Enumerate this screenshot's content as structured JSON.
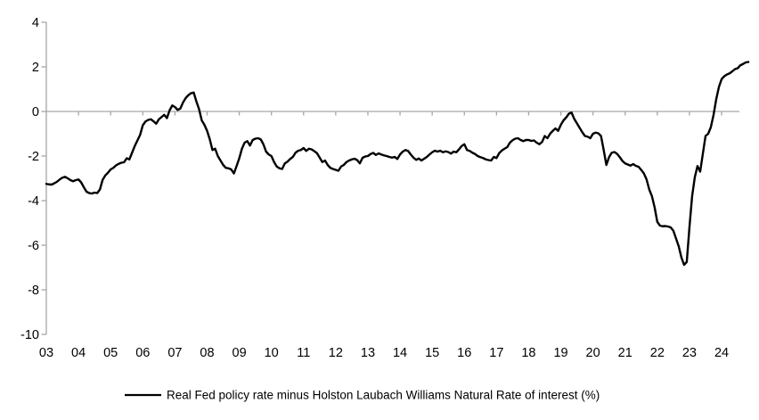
{
  "chart_data": {
    "type": "line",
    "title": "",
    "xlabel": "",
    "ylabel": "",
    "x_tick_labels": [
      "03",
      "04",
      "05",
      "06",
      "07",
      "08",
      "09",
      "10",
      "11",
      "12",
      "13",
      "14",
      "15",
      "16",
      "17",
      "18",
      "19",
      "20",
      "21",
      "22",
      "23",
      "24"
    ],
    "y_ticks": [
      4,
      2,
      0,
      -2,
      -4,
      -6,
      -8,
      -10
    ],
    "ylim": [
      -10,
      4
    ],
    "grid": "zero-line-only",
    "axis_color": "#a6a6a6",
    "background_color": "#ffffff",
    "legend_position": "bottom-center",
    "series": [
      {
        "name": "Real Fed policy rate minus Holston Laubach Williams Natural Rate of interest (%)",
        "color": "#000000",
        "start": "2003-01",
        "frequency": "monthly",
        "values": [
          -3.25,
          -3.27,
          -3.28,
          -3.22,
          -3.15,
          -3.05,
          -2.97,
          -2.93,
          -3.0,
          -3.08,
          -3.13,
          -3.08,
          -3.05,
          -3.18,
          -3.4,
          -3.6,
          -3.66,
          -3.68,
          -3.64,
          -3.66,
          -3.5,
          -3.07,
          -2.87,
          -2.75,
          -2.6,
          -2.53,
          -2.42,
          -2.35,
          -2.3,
          -2.28,
          -2.1,
          -2.15,
          -1.85,
          -1.55,
          -1.3,
          -1.05,
          -0.62,
          -0.45,
          -0.38,
          -0.35,
          -0.44,
          -0.55,
          -0.35,
          -0.25,
          -0.15,
          -0.3,
          0.05,
          0.27,
          0.2,
          0.07,
          0.13,
          0.4,
          0.6,
          0.73,
          0.82,
          0.85,
          0.45,
          0.1,
          -0.4,
          -0.6,
          -0.87,
          -1.25,
          -1.73,
          -1.67,
          -2.0,
          -2.2,
          -2.4,
          -2.53,
          -2.55,
          -2.6,
          -2.78,
          -2.45,
          -2.1,
          -1.67,
          -1.4,
          -1.33,
          -1.53,
          -1.28,
          -1.22,
          -1.2,
          -1.25,
          -1.47,
          -1.8,
          -1.93,
          -2.0,
          -2.27,
          -2.47,
          -2.55,
          -2.58,
          -2.33,
          -2.25,
          -2.13,
          -2.04,
          -1.85,
          -1.76,
          -1.73,
          -1.64,
          -1.77,
          -1.67,
          -1.7,
          -1.78,
          -1.87,
          -2.07,
          -2.27,
          -2.2,
          -2.4,
          -2.53,
          -2.58,
          -2.62,
          -2.66,
          -2.47,
          -2.4,
          -2.27,
          -2.2,
          -2.15,
          -2.12,
          -2.18,
          -2.33,
          -2.08,
          -2.02,
          -2.0,
          -1.91,
          -1.86,
          -1.95,
          -1.88,
          -1.93,
          -1.97,
          -2.0,
          -2.04,
          -2.07,
          -2.04,
          -2.13,
          -1.93,
          -1.8,
          -1.73,
          -1.77,
          -1.93,
          -2.07,
          -2.17,
          -2.11,
          -2.2,
          -2.12,
          -2.04,
          -1.93,
          -1.83,
          -1.76,
          -1.8,
          -1.76,
          -1.83,
          -1.79,
          -1.82,
          -1.89,
          -1.8,
          -1.83,
          -1.7,
          -1.55,
          -1.47,
          -1.73,
          -1.77,
          -1.85,
          -1.91,
          -2.0,
          -2.05,
          -2.09,
          -2.15,
          -2.18,
          -2.2,
          -2.04,
          -2.09,
          -1.87,
          -1.75,
          -1.67,
          -1.6,
          -1.4,
          -1.29,
          -1.22,
          -1.2,
          -1.28,
          -1.33,
          -1.28,
          -1.28,
          -1.32,
          -1.3,
          -1.4,
          -1.47,
          -1.37,
          -1.1,
          -1.2,
          -1.0,
          -0.87,
          -0.76,
          -0.87,
          -0.6,
          -0.4,
          -0.27,
          -0.1,
          -0.05,
          -0.33,
          -0.53,
          -0.73,
          -0.93,
          -1.1,
          -1.13,
          -1.2,
          -1.0,
          -0.95,
          -0.98,
          -1.1,
          -1.73,
          -2.4,
          -2.05,
          -1.85,
          -1.82,
          -1.9,
          -2.05,
          -2.22,
          -2.33,
          -2.38,
          -2.43,
          -2.36,
          -2.44,
          -2.48,
          -2.62,
          -2.78,
          -3.05,
          -3.5,
          -3.8,
          -4.3,
          -4.95,
          -5.12,
          -5.15,
          -5.14,
          -5.16,
          -5.2,
          -5.35,
          -5.7,
          -6.05,
          -6.55,
          -6.88,
          -6.75,
          -5.2,
          -3.8,
          -2.95,
          -2.45,
          -2.7,
          -1.9,
          -1.1,
          -1.0,
          -0.7,
          -0.15,
          0.55,
          1.1,
          1.45,
          1.58,
          1.66,
          1.71,
          1.8,
          1.9,
          1.94,
          2.07,
          2.13,
          2.2,
          2.22
        ]
      }
    ]
  },
  "legend": {
    "label": "Real Fed policy rate minus Holston Laubach Williams Natural Rate of interest (%)"
  }
}
